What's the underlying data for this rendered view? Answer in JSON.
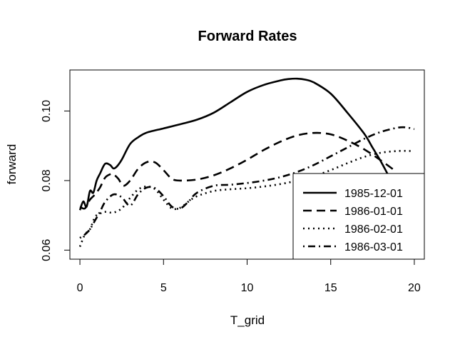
{
  "chart_data": {
    "type": "line",
    "title": "Forward Rates",
    "xlabel": "T_grid",
    "ylabel": "forward",
    "xlim": [
      -0.6,
      20.6
    ],
    "ylim": [
      0.0574,
      0.1118
    ],
    "xticks": [
      0,
      5,
      10,
      15,
      20
    ],
    "yticks": [
      0.06,
      0.08,
      0.1
    ],
    "yticks_labels": [
      "0.06",
      "0.08",
      "0.10"
    ],
    "grid": false,
    "legend_position": "bottom-right",
    "series": [
      {
        "name": "1985-12-01",
        "line_style": "solid",
        "x": [
          0,
          0.2,
          0.4,
          0.6,
          0.8,
          1.0,
          1.2,
          1.5,
          1.8,
          2.0,
          2.2,
          2.5,
          3.0,
          3.5,
          4.0,
          5.0,
          6.0,
          7.0,
          8.0,
          9.0,
          10.0,
          11.0,
          12.0,
          12.5,
          13.0,
          13.5,
          14.0,
          15.0,
          16.0,
          17.0,
          17.5,
          18.0,
          18.5
        ],
        "y": [
          0.0715,
          0.074,
          0.0725,
          0.077,
          0.0765,
          0.08,
          0.082,
          0.0848,
          0.0845,
          0.0835,
          0.084,
          0.086,
          0.0905,
          0.0925,
          0.0938,
          0.095,
          0.0962,
          0.0975,
          0.0995,
          0.1025,
          0.1055,
          0.1075,
          0.1088,
          0.1092,
          0.1093,
          0.109,
          0.1082,
          0.105,
          0.0995,
          0.0935,
          0.0895,
          0.0855,
          0.081
        ]
      },
      {
        "name": "1986-01-01",
        "line_style": "dashed",
        "x": [
          0,
          0.3,
          0.6,
          0.9,
          1.2,
          1.5,
          1.8,
          2.0,
          2.3,
          2.6,
          3.0,
          3.5,
          4.0,
          4.5,
          5.0,
          5.5,
          6.0,
          7.0,
          8.0,
          9.0,
          10.0,
          11.0,
          12.0,
          13.0,
          14.0,
          15.0,
          16.0,
          17.0,
          18.0,
          18.8
        ],
        "y": [
          0.0725,
          0.072,
          0.0745,
          0.076,
          0.078,
          0.0808,
          0.0818,
          0.0818,
          0.0805,
          0.0785,
          0.08,
          0.0835,
          0.0853,
          0.0852,
          0.083,
          0.0805,
          0.08,
          0.0803,
          0.0815,
          0.0835,
          0.086,
          0.0888,
          0.0912,
          0.093,
          0.0937,
          0.0933,
          0.0915,
          0.089,
          0.0858,
          0.083
        ]
      },
      {
        "name": "1986-02-01",
        "line_style": "dotted",
        "x": [
          0,
          0.3,
          0.6,
          0.9,
          1.2,
          1.5,
          2.0,
          2.5,
          3.0,
          3.5,
          4.0,
          4.5,
          5.0,
          5.5,
          6.0,
          6.5,
          7.0,
          8.0,
          9.0,
          10.0,
          11.0,
          12.0,
          13.0,
          14.0,
          15.0,
          16.0,
          17.0,
          18.0,
          19.0,
          19.8
        ],
        "y": [
          0.061,
          0.0645,
          0.066,
          0.0695,
          0.0705,
          0.071,
          0.0708,
          0.072,
          0.075,
          0.0775,
          0.0783,
          0.0775,
          0.0745,
          0.072,
          0.0722,
          0.074,
          0.0755,
          0.077,
          0.0775,
          0.0778,
          0.0783,
          0.079,
          0.08,
          0.0813,
          0.083,
          0.085,
          0.0868,
          0.088,
          0.0885,
          0.0885
        ]
      },
      {
        "name": "1986-03-01",
        "line_style": "dotdash",
        "x": [
          0,
          0.3,
          0.6,
          0.9,
          1.2,
          1.5,
          2.0,
          2.5,
          3.0,
          3.5,
          4.0,
          4.5,
          5.0,
          5.5,
          6.0,
          6.5,
          7.0,
          8.0,
          9.0,
          10.0,
          11.0,
          12.0,
          13.0,
          14.0,
          15.0,
          16.0,
          17.0,
          18.0,
          19.0,
          19.5,
          20.0
        ],
        "y": [
          0.0635,
          0.0645,
          0.066,
          0.0685,
          0.071,
          0.0738,
          0.076,
          0.0752,
          0.0728,
          0.0762,
          0.078,
          0.0778,
          0.0755,
          0.0725,
          0.072,
          0.074,
          0.0765,
          0.0785,
          0.0788,
          0.0793,
          0.08,
          0.081,
          0.0825,
          0.0845,
          0.087,
          0.0895,
          0.092,
          0.094,
          0.0952,
          0.0953,
          0.0948
        ]
      }
    ]
  }
}
